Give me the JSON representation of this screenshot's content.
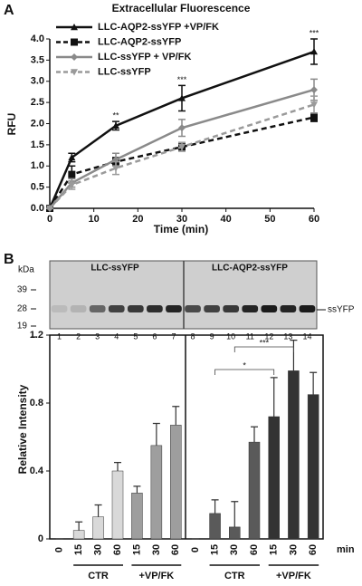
{
  "panel_labels": [
    "A",
    "B"
  ],
  "chart_data": [
    {
      "type": "line",
      "title": "Extracellular Fluorescence",
      "x_label": "Time (min)",
      "y_label": "RFU",
      "x": [
        0,
        5,
        15,
        30,
        60
      ],
      "xlim": [
        0,
        60
      ],
      "xticks": [
        0,
        10,
        20,
        30,
        40,
        50,
        60
      ],
      "ylim": [
        0,
        4
      ],
      "yticks": [
        {
          "value": 0,
          "label": "0.0"
        },
        0.5,
        {
          "value": 1,
          "label": "1.0"
        },
        1.5,
        {
          "value": 2,
          "label": "2.0"
        },
        2.5,
        {
          "value": 3,
          "label": "3.0"
        },
        3.5,
        {
          "value": 4,
          "label": "4.0"
        }
      ],
      "legend": "top-left",
      "series": [
        {
          "name": "LLC-AQP2-ssYFP +VP/FK",
          "color": "#111111",
          "dash": false,
          "marker": "triangle",
          "values": [
            0,
            1.2,
            1.95,
            2.6,
            3.7
          ],
          "errors": [
            0,
            0.1,
            0.1,
            0.3,
            0.3
          ]
        },
        {
          "name": "LLC-AQP2-ssYFP",
          "color": "#111111",
          "dash": true,
          "marker": "square",
          "values": [
            0,
            0.8,
            1.1,
            1.45,
            2.15
          ],
          "errors": [
            0,
            0.2,
            0.1,
            0.1,
            0.1
          ]
        },
        {
          "name": "LLC-ssYFP + VP/FK",
          "color": "#8a8a8a",
          "dash": false,
          "marker": "diamond",
          "values": [
            0,
            0.6,
            1.15,
            1.9,
            2.8
          ],
          "errors": [
            0,
            0.1,
            0.15,
            0.2,
            0.25
          ]
        },
        {
          "name": "LLC-ssYFP",
          "color": "#9a9a9a",
          "dash": true,
          "marker": "triangle-down",
          "values": [
            0,
            0.55,
            0.95,
            1.45,
            2.45
          ],
          "errors": [
            0,
            0.1,
            0.15,
            0.1,
            0.2
          ]
        }
      ],
      "annotations": [
        {
          "x": 15,
          "text": "**"
        },
        {
          "x": 30,
          "text": "***"
        },
        {
          "x": 60,
          "text": "***"
        }
      ]
    },
    {
      "type": "bar",
      "y_label": "Relative Intensity",
      "x_unit": "min",
      "ylim": [
        0,
        1.2
      ],
      "yticks": [
        0,
        0.4,
        0.8,
        1.2
      ],
      "panels": [
        {
          "categories": [
            "0",
            "15",
            "30",
            "60",
            "15",
            "30",
            "60"
          ],
          "groups": [
            "CTR",
            "+VP/FK"
          ],
          "values": [
            0,
            0.05,
            0.13,
            0.4,
            0.27,
            0.55,
            0.67
          ],
          "errors": [
            0,
            0.05,
            0.07,
            0.05,
            0.04,
            0.13,
            0.11
          ],
          "colors": [
            "#d9d9d9",
            "#d9d9d9",
            "#d9d9d9",
            "#d9d9d9",
            "#9e9e9e",
            "#9e9e9e",
            "#9e9e9e"
          ]
        },
        {
          "categories": [
            "0",
            "15",
            "30",
            "60",
            "15",
            "30",
            "60"
          ],
          "groups": [
            "CTR",
            "+VP/FK"
          ],
          "values": [
            0,
            0.15,
            0.07,
            0.57,
            0.72,
            0.99,
            0.85
          ],
          "errors": [
            0,
            0.08,
            0.15,
            0.09,
            0.23,
            0.18,
            0.13
          ],
          "colors": [
            "#5a5a5a",
            "#5a5a5a",
            "#5a5a5a",
            "#5a5a5a",
            "#333333",
            "#333333",
            "#333333"
          ],
          "annotations": [
            "*",
            "***"
          ]
        }
      ]
    }
  ],
  "blot": {
    "kda_label": "kDa",
    "markers": [
      "39",
      "28",
      "19"
    ],
    "headers": [
      "LLC-ssYFP",
      "LLC-AQP2-ssYFP"
    ],
    "band_label": "ssYFP",
    "lanes": [
      "1",
      "2",
      "3",
      "4",
      "5",
      "6",
      "7",
      "8",
      "9",
      "10",
      "11",
      "12",
      "13",
      "14"
    ]
  }
}
